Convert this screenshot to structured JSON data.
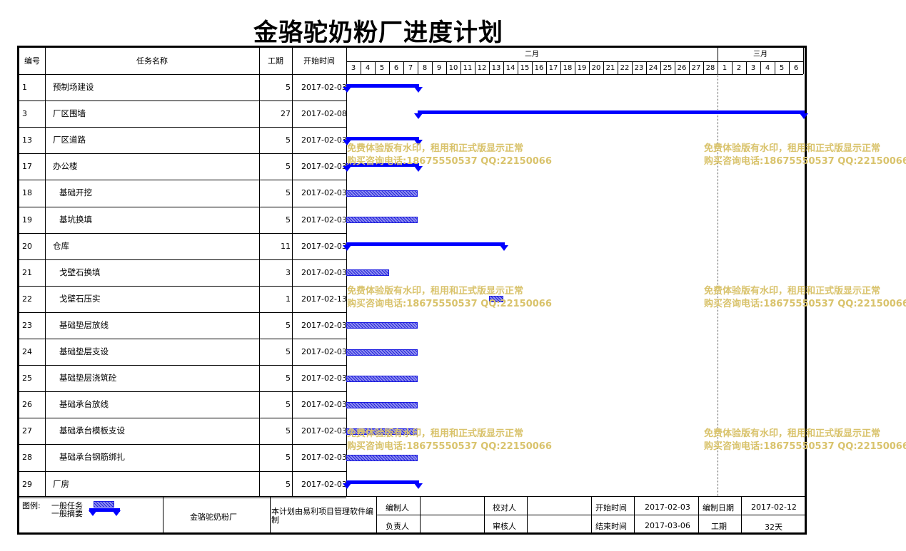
{
  "title": "金骆驼奶粉厂进度计划",
  "headers": {
    "id": "编号",
    "name": "任务名称",
    "dur": "工期",
    "start": "开始时间"
  },
  "months": [
    "二月",
    "三月"
  ],
  "days": [
    "3",
    "4",
    "5",
    "6",
    "7",
    "8",
    "9",
    "10",
    "11",
    "12",
    "13",
    "14",
    "15",
    "16",
    "17",
    "18",
    "19",
    "20",
    "21",
    "22",
    "23",
    "24",
    "25",
    "26",
    "27",
    "28",
    "1",
    "2",
    "3",
    "4",
    "5",
    "6"
  ],
  "tasks": [
    {
      "id": "1",
      "name": "预制场建设",
      "dur": "5",
      "start": "2017-02-03",
      "type": "summary",
      "from": 0,
      "len": 5,
      "indent": false
    },
    {
      "id": "3",
      "name": "厂区围墙",
      "dur": "27",
      "start": "2017-02-08",
      "type": "summary",
      "from": 5,
      "len": 27,
      "indent": false
    },
    {
      "id": "13",
      "name": "厂区道路",
      "dur": "5",
      "start": "2017-02-03",
      "type": "summary",
      "from": 0,
      "len": 5,
      "indent": false
    },
    {
      "id": "17",
      "name": "办公楼",
      "dur": "5",
      "start": "2017-02-03",
      "type": "summary",
      "from": 0,
      "len": 5,
      "indent": false
    },
    {
      "id": "18",
      "name": "基础开挖",
      "dur": "5",
      "start": "2017-02-03",
      "type": "task",
      "from": 0,
      "len": 5,
      "indent": true
    },
    {
      "id": "19",
      "name": "基坑换填",
      "dur": "5",
      "start": "2017-02-03",
      "type": "task",
      "from": 0,
      "len": 5,
      "indent": true
    },
    {
      "id": "20",
      "name": "仓库",
      "dur": "11",
      "start": "2017-02-03",
      "type": "summary",
      "from": 0,
      "len": 11,
      "indent": false
    },
    {
      "id": "21",
      "name": "戈壁石换填",
      "dur": "3",
      "start": "2017-02-03",
      "type": "task",
      "from": 0,
      "len": 3,
      "indent": true
    },
    {
      "id": "22",
      "name": "戈壁石压实",
      "dur": "1",
      "start": "2017-02-13",
      "type": "task",
      "from": 10,
      "len": 1,
      "indent": true
    },
    {
      "id": "23",
      "name": "基础垫层放线",
      "dur": "5",
      "start": "2017-02-03",
      "type": "task",
      "from": 0,
      "len": 5,
      "indent": true
    },
    {
      "id": "24",
      "name": "基础垫层支设",
      "dur": "5",
      "start": "2017-02-03",
      "type": "task",
      "from": 0,
      "len": 5,
      "indent": true
    },
    {
      "id": "25",
      "name": "基础垫层浇筑砼",
      "dur": "5",
      "start": "2017-02-03",
      "type": "task",
      "from": 0,
      "len": 5,
      "indent": true
    },
    {
      "id": "26",
      "name": "基础承台放线",
      "dur": "5",
      "start": "2017-02-03",
      "type": "task",
      "from": 0,
      "len": 5,
      "indent": true
    },
    {
      "id": "27",
      "name": "基础承台模板支设",
      "dur": "5",
      "start": "2017-02-03",
      "type": "task",
      "from": 0,
      "len": 5,
      "indent": true
    },
    {
      "id": "28",
      "name": "基础承台钢筋绑扎",
      "dur": "5",
      "start": "2017-02-03",
      "type": "task",
      "from": 0,
      "len": 5,
      "indent": true
    },
    {
      "id": "29",
      "name": "厂房",
      "dur": "5",
      "start": "2017-02-03",
      "type": "summary",
      "from": 0,
      "len": 5,
      "indent": false
    }
  ],
  "watermark": {
    "line1": "免费体验版有水印，租用和正式版显示正常",
    "line2": "购买咨询电话:18675550537 QQ:22150066"
  },
  "footer": {
    "legend_label": "图例:",
    "legend_task": "一般任务",
    "legend_summary": "一般摘要",
    "company": "金骆驼奶粉厂",
    "note": "本计划由易利项目管理软件编制",
    "editor_label": "编制人",
    "responsible_label": "负责人",
    "checker_label": "校对人",
    "reviewer_label": "审核人",
    "start_label": "开始时间",
    "start_value": "2017-02-03",
    "end_label": "结束时间",
    "end_value": "2017-03-06",
    "date_label": "编制日期",
    "date_value": "2017-02-12",
    "dur_label": "工期",
    "dur_value": "32天"
  }
}
